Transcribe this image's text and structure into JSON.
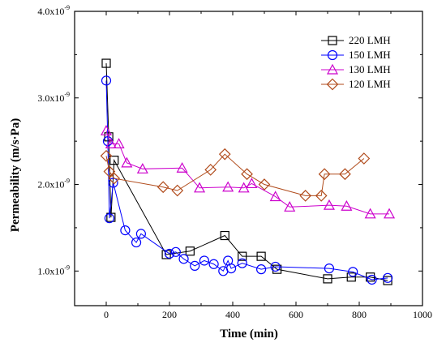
{
  "chart_data": {
    "type": "line",
    "xlabel": "Time (min)",
    "ylabel": "Permeability (m/s·Pa)",
    "xlim": [
      -100,
      1000
    ],
    "ylim": [
      6e-10,
      4e-09
    ],
    "x_ticks": [
      0,
      200,
      400,
      600,
      800,
      1000
    ],
    "y_ticks": [
      {
        "value": 1e-09,
        "label_base": "1.0x10",
        "label_exp": "-9"
      },
      {
        "value": 2e-09,
        "label_base": "2.0x10",
        "label_exp": "-9"
      },
      {
        "value": 3e-09,
        "label_base": "3.0x10",
        "label_exp": "-9"
      },
      {
        "value": 4e-09,
        "label_base": "4.0x10",
        "label_exp": "-9"
      }
    ],
    "grid": false,
    "legend_position": "top-right",
    "series": [
      {
        "name": "220 LMH",
        "color": "#000000",
        "marker": "square",
        "x": [
          0,
          8,
          15,
          25,
          190,
          265,
          375,
          430,
          490,
          540,
          700,
          775,
          835,
          890
        ],
        "y": [
          3.4e-09,
          2.55e-09,
          1.62e-09,
          2.28e-09,
          1.19e-09,
          1.23e-09,
          1.41e-09,
          1.17e-09,
          1.17e-09,
          1.02e-09,
          9.1e-10,
          9.3e-10,
          9.3e-10,
          8.9e-10
        ]
      },
      {
        "name": "150 LMH",
        "color": "#0000ff",
        "marker": "circle",
        "x": [
          0,
          5,
          10,
          22,
          60,
          95,
          110,
          200,
          220,
          245,
          280,
          310,
          340,
          370,
          385,
          395,
          430,
          490,
          535,
          705,
          780,
          840,
          890
        ],
        "y": [
          3.2e-09,
          2.5e-09,
          1.61e-09,
          2.02e-09,
          1.47e-09,
          1.33e-09,
          1.43e-09,
          1.2e-09,
          1.22e-09,
          1.14e-09,
          1.06e-09,
          1.12e-09,
          1.08e-09,
          1e-09,
          1.12e-09,
          1.03e-09,
          1.09e-09,
          1.02e-09,
          1.05e-09,
          1.03e-09,
          9.9e-10,
          9e-10,
          9.2e-10
        ]
      },
      {
        "name": "130 LMH",
        "color": "#cc00cc",
        "marker": "triangle",
        "x": [
          0,
          15,
          40,
          65,
          115,
          240,
          295,
          385,
          435,
          460,
          535,
          580,
          705,
          760,
          835,
          895
        ],
        "y": [
          2.62e-09,
          2.47e-09,
          2.47e-09,
          2.25e-09,
          2.18e-09,
          2.19e-09,
          1.96e-09,
          1.97e-09,
          1.96e-09,
          2.01e-09,
          1.86e-09,
          1.74e-09,
          1.76e-09,
          1.75e-09,
          1.66e-09,
          1.66e-09
        ]
      },
      {
        "name": "120 LMH",
        "color": "#b04a1a",
        "marker": "diamond",
        "x": [
          0,
          10,
          25,
          180,
          225,
          330,
          375,
          445,
          500,
          630,
          680,
          690,
          755,
          815
        ],
        "y": [
          2.33e-09,
          2.15e-09,
          2.07e-09,
          1.97e-09,
          1.93e-09,
          2.17e-09,
          2.35e-09,
          2.12e-09,
          2e-09,
          1.87e-09,
          1.87e-09,
          2.12e-09,
          2.12e-09,
          2.3e-09
        ]
      }
    ]
  }
}
